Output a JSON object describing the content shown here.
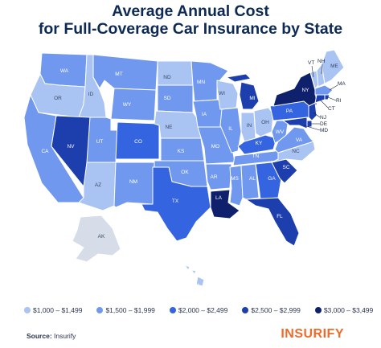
{
  "title": {
    "line1": "Average Annual Cost",
    "line2": "for Full-Coverage Car Insurance by State"
  },
  "legend": [
    {
      "label": "$1,000 – $1,499",
      "color": "#a9c3f2",
      "tier": 1
    },
    {
      "label": "$1,500 – $1,999",
      "color": "#6f98ee",
      "tier": 2
    },
    {
      "label": "$2,000 – $2,499",
      "color": "#3564e0",
      "tier": 3
    },
    {
      "label": "$2,500 – $2,999",
      "color": "#1d3fae",
      "tier": 4
    },
    {
      "label": "$3,000 – $3,499",
      "color": "#0f216d",
      "tier": 5
    }
  ],
  "states": [
    {
      "abbr": "WA",
      "tier": 2
    },
    {
      "abbr": "OR",
      "tier": 1
    },
    {
      "abbr": "CA",
      "tier": 2
    },
    {
      "abbr": "ID",
      "tier": 1
    },
    {
      "abbr": "NV",
      "tier": 4
    },
    {
      "abbr": "MT",
      "tier": 2
    },
    {
      "abbr": "WY",
      "tier": 2
    },
    {
      "abbr": "UT",
      "tier": 2
    },
    {
      "abbr": "AZ",
      "tier": 1
    },
    {
      "abbr": "CO",
      "tier": 3
    },
    {
      "abbr": "NM",
      "tier": 2
    },
    {
      "abbr": "ND",
      "tier": 1
    },
    {
      "abbr": "SD",
      "tier": 2
    },
    {
      "abbr": "NE",
      "tier": 1
    },
    {
      "abbr": "KS",
      "tier": 2
    },
    {
      "abbr": "OK",
      "tier": 2
    },
    {
      "abbr": "TX",
      "tier": 3
    },
    {
      "abbr": "MN",
      "tier": 2
    },
    {
      "abbr": "IA",
      "tier": 2
    },
    {
      "abbr": "MO",
      "tier": 2
    },
    {
      "abbr": "AR",
      "tier": 2
    },
    {
      "abbr": "LA",
      "tier": 5
    },
    {
      "abbr": "WI",
      "tier": 1
    },
    {
      "abbr": "IL",
      "tier": 2
    },
    {
      "abbr": "MI",
      "tier": 4
    },
    {
      "abbr": "IN",
      "tier": 1
    },
    {
      "abbr": "OH",
      "tier": 1
    },
    {
      "abbr": "KY",
      "tier": 3
    },
    {
      "abbr": "TN",
      "tier": 2
    },
    {
      "abbr": "MS",
      "tier": 2
    },
    {
      "abbr": "AL",
      "tier": 2
    },
    {
      "abbr": "GA",
      "tier": 3
    },
    {
      "abbr": "FL",
      "tier": 4
    },
    {
      "abbr": "SC",
      "tier": 4
    },
    {
      "abbr": "NC",
      "tier": 1
    },
    {
      "abbr": "VA",
      "tier": 2
    },
    {
      "abbr": "WV",
      "tier": 2
    },
    {
      "abbr": "PA",
      "tier": 3
    },
    {
      "abbr": "NY",
      "tier": 5
    },
    {
      "abbr": "VT",
      "tier": 1
    },
    {
      "abbr": "NH",
      "tier": 1
    },
    {
      "abbr": "ME",
      "tier": 1
    },
    {
      "abbr": "MA",
      "tier": 2
    },
    {
      "abbr": "RI",
      "tier": 4
    },
    {
      "abbr": "CT",
      "tier": 4
    },
    {
      "abbr": "NJ",
      "tier": 4
    },
    {
      "abbr": "DE",
      "tier": 4
    },
    {
      "abbr": "MD",
      "tier": 4
    },
    {
      "abbr": "AK",
      "tier": 0
    },
    {
      "abbr": "HI",
      "tier": 1
    }
  ],
  "colors": {
    "no_data": "#d6dde8",
    "border": "#ffffff",
    "title": "#0d2a55",
    "logo": "#f06a2a"
  },
  "source": {
    "label": "Source:",
    "value": "Insurify"
  },
  "logo": "INSURIFY"
}
